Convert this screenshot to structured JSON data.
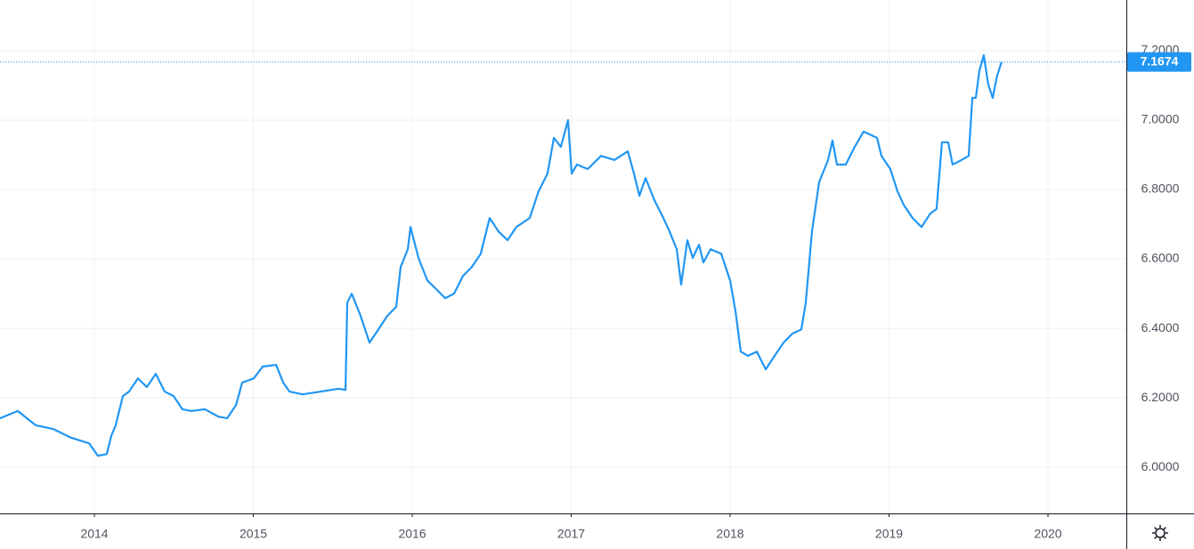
{
  "chart_data": {
    "type": "line",
    "x": [
      2013.406,
      2013.518,
      2013.63,
      2013.742,
      2013.854,
      2013.966,
      2014.022,
      2014.078,
      2014.106,
      2014.134,
      2014.179,
      2014.218,
      2014.274,
      2014.33,
      2014.386,
      2014.442,
      2014.498,
      2014.554,
      2014.61,
      2014.695,
      2014.779,
      2014.835,
      2014.891,
      2014.93,
      2015.003,
      2015.059,
      2015.143,
      2015.188,
      2015.227,
      2015.311,
      2015.423,
      2015.535,
      2015.58,
      2015.591,
      2015.619,
      2015.675,
      2015.731,
      2015.787,
      2015.843,
      2015.899,
      2015.927,
      2015.972,
      2015.989,
      2016.039,
      2016.095,
      2016.151,
      2016.207,
      2016.263,
      2016.319,
      2016.375,
      2016.431,
      2016.487,
      2016.543,
      2016.599,
      2016.655,
      2016.739,
      2016.795,
      2016.851,
      2016.891,
      2016.935,
      2016.98,
      2017.003,
      2017.036,
      2017.104,
      2017.188,
      2017.272,
      2017.356,
      2017.395,
      2017.429,
      2017.468,
      2017.524,
      2017.58,
      2017.619,
      2017.664,
      2017.692,
      2017.731,
      2017.765,
      2017.804,
      2017.832,
      2017.877,
      2017.944,
      2018.0,
      2018.034,
      2018.067,
      2018.112,
      2018.168,
      2018.224,
      2018.28,
      2018.336,
      2018.392,
      2018.448,
      2018.476,
      2018.515,
      2018.56,
      2018.616,
      2018.644,
      2018.672,
      2018.728,
      2018.784,
      2018.84,
      2018.924,
      2018.952,
      2019.008,
      2019.053,
      2019.092,
      2019.148,
      2019.204,
      2019.26,
      2019.299,
      2019.333,
      2019.372,
      2019.4,
      2019.456,
      2019.501,
      2019.524,
      2019.546,
      2019.568,
      2019.596,
      2019.624,
      2019.652,
      2019.68,
      2019.708
    ],
    "series": [
      {
        "color": "#2196f3",
        "values": [
          6.141,
          6.162,
          6.121,
          6.11,
          6.085,
          6.069,
          6.033,
          6.038,
          6.09,
          6.121,
          6.205,
          6.218,
          6.256,
          6.231,
          6.269,
          6.218,
          6.205,
          6.167,
          6.162,
          6.167,
          6.146,
          6.141,
          6.179,
          6.244,
          6.256,
          6.29,
          6.295,
          6.244,
          6.218,
          6.21,
          6.218,
          6.226,
          6.223,
          6.474,
          6.5,
          6.436,
          6.359,
          6.397,
          6.436,
          6.462,
          6.577,
          6.628,
          6.692,
          6.603,
          6.538,
          6.513,
          6.487,
          6.5,
          6.551,
          6.577,
          6.615,
          6.718,
          6.679,
          6.654,
          6.692,
          6.718,
          6.795,
          6.846,
          6.949,
          6.923,
          7.0,
          6.846,
          6.872,
          6.859,
          6.897,
          6.885,
          6.91,
          6.846,
          6.782,
          6.833,
          6.769,
          6.718,
          6.679,
          6.628,
          6.526,
          6.654,
          6.603,
          6.641,
          6.59,
          6.628,
          6.615,
          6.538,
          6.449,
          6.333,
          6.321,
          6.333,
          6.282,
          6.321,
          6.359,
          6.385,
          6.397,
          6.474,
          6.679,
          6.821,
          6.885,
          6.941,
          6.872,
          6.872,
          6.923,
          6.967,
          6.949,
          6.897,
          6.859,
          6.795,
          6.756,
          6.718,
          6.692,
          6.731,
          6.744,
          6.936,
          6.936,
          6.872,
          6.885,
          6.897,
          7.064,
          7.064,
          7.141,
          7.187,
          7.103,
          7.064,
          7.128,
          7.1674
        ]
      }
    ],
    "last_price": 7.1674,
    "xlim": [
      2013.406,
      2020.493
    ],
    "xticks": [
      2014,
      2015,
      2016,
      2017,
      2018,
      2019,
      2020
    ],
    "ylim": [
      5.867,
      7.346
    ],
    "yticks": [
      {
        "value": 6.0,
        "label": "6.0000"
      },
      {
        "value": 6.2,
        "label": "6.2000"
      },
      {
        "value": 6.4,
        "label": "6.4000"
      },
      {
        "value": 6.6,
        "label": "6.6000"
      },
      {
        "value": 6.8,
        "label": "6.8000"
      },
      {
        "value": 7.0,
        "label": "7.0000"
      },
      {
        "value": 7.2,
        "label": "7.2000"
      }
    ],
    "grid": true
  }
}
